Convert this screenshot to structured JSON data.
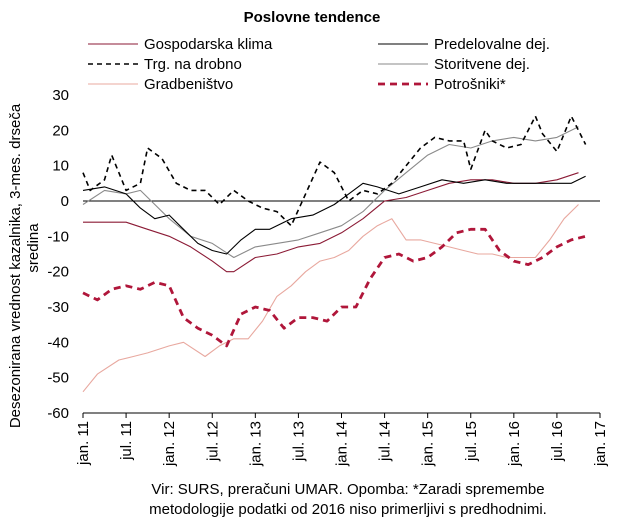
{
  "chart_data": {
    "type": "line",
    "title": "Poslovne tendence",
    "ylabel": "Desezonirana vrednost kazalnika, 3-mes. drseča sredina",
    "ylim": [
      -60,
      30
    ],
    "yticks": [
      30,
      20,
      10,
      0,
      -10,
      -20,
      -30,
      -40,
      -50,
      -60
    ],
    "x_start": "2011-01",
    "x_end": "2017-01",
    "xtick_labels": [
      "jan. 11",
      "jul. 11",
      "jan. 12",
      "jul. 12",
      "jan. 13",
      "jul. 13",
      "jan. 14",
      "jul. 14",
      "jan. 15",
      "jul. 15",
      "jan. 16",
      "jul. 16",
      "jan. 17"
    ],
    "legend_placement": "top",
    "series": [
      {
        "name": "Gospodarska klima",
        "color": "#8b1a35",
        "dash": "solid",
        "x": [
          "2011-01",
          "2011-04",
          "2011-07",
          "2011-10",
          "2012-01",
          "2012-04",
          "2012-07",
          "2012-09",
          "2012-10",
          "2013-01",
          "2013-04",
          "2013-07",
          "2013-10",
          "2014-01",
          "2014-04",
          "2014-07",
          "2014-10",
          "2015-01",
          "2015-04",
          "2015-07",
          "2015-10",
          "2016-01",
          "2016-04",
          "2016-07",
          "2016-10"
        ],
        "values": [
          -6,
          -6,
          -6,
          -8,
          -10,
          -13,
          -17,
          -20,
          -20,
          -16,
          -15,
          -13,
          -12,
          -9,
          -5,
          0,
          1,
          3,
          5,
          6,
          6,
          5,
          5,
          6,
          8
        ]
      },
      {
        "name": "Predelovalne dej.",
        "color": "#000000",
        "dash": "solid",
        "x": [
          "2011-01",
          "2011-04",
          "2011-07",
          "2011-09",
          "2011-11",
          "2012-01",
          "2012-03",
          "2012-05",
          "2012-07",
          "2012-09",
          "2012-11",
          "2013-01",
          "2013-03",
          "2013-06",
          "2013-09",
          "2013-12",
          "2014-02",
          "2014-04",
          "2014-06",
          "2014-09",
          "2014-12",
          "2015-03",
          "2015-06",
          "2015-09",
          "2015-12",
          "2016-03",
          "2016-06",
          "2016-09",
          "2016-11"
        ],
        "values": [
          3,
          4,
          2,
          -2,
          -5,
          -4,
          -8,
          -12,
          -14,
          -15,
          -11,
          -8,
          -8,
          -5,
          -4,
          -1,
          2,
          5,
          4,
          2,
          4,
          6,
          5,
          6,
          5,
          5,
          5,
          5,
          7
        ]
      },
      {
        "name": "Trg. na drobno",
        "color": "#000000",
        "dash": "dashed",
        "x": [
          "2011-01",
          "2011-02",
          "2011-04",
          "2011-05",
          "2011-07",
          "2011-09",
          "2011-10",
          "2011-12",
          "2012-02",
          "2012-04",
          "2012-06",
          "2012-08",
          "2012-10",
          "2012-12",
          "2013-02",
          "2013-04",
          "2013-06",
          "2013-08",
          "2013-10",
          "2013-12",
          "2014-02",
          "2014-04",
          "2014-06",
          "2014-08",
          "2014-10",
          "2014-12",
          "2015-02",
          "2015-04",
          "2015-06",
          "2015-07",
          "2015-09",
          "2015-10",
          "2015-12",
          "2016-02",
          "2016-04",
          "2016-05",
          "2016-07",
          "2016-09",
          "2016-11"
        ],
        "values": [
          8,
          3,
          6,
          13,
          3,
          5,
          15,
          12,
          5,
          3,
          3,
          -1,
          3,
          0,
          -2,
          -3,
          -7,
          2,
          11,
          8,
          0,
          3,
          2,
          5,
          10,
          15,
          18,
          17,
          17,
          9,
          20,
          17,
          15,
          16,
          24,
          19,
          14,
          24,
          16
        ]
      },
      {
        "name": "Storitvene dej.",
        "color": "#8a8a8a",
        "dash": "solid",
        "x": [
          "2011-01",
          "2011-04",
          "2011-07",
          "2011-09",
          "2011-11",
          "2012-01",
          "2012-04",
          "2012-07",
          "2012-10",
          "2013-01",
          "2013-04",
          "2013-07",
          "2013-10",
          "2014-01",
          "2014-04",
          "2014-07",
          "2014-10",
          "2015-01",
          "2015-04",
          "2015-07",
          "2015-10",
          "2016-01",
          "2016-04",
          "2016-07",
          "2016-10"
        ],
        "values": [
          -1,
          3,
          2,
          3,
          -1,
          -5,
          -10,
          -12,
          -16,
          -13,
          -12,
          -11,
          -9,
          -7,
          -3,
          3,
          8,
          13,
          16,
          15,
          17,
          18,
          17,
          18,
          21
        ]
      },
      {
        "name": "Gradbeništvo",
        "color": "#e8a89f",
        "dash": "solid",
        "x": [
          "2011-01",
          "2011-03",
          "2011-06",
          "2011-08",
          "2011-10",
          "2012-01",
          "2012-03",
          "2012-06",
          "2012-08",
          "2012-10",
          "2012-12",
          "2013-02",
          "2013-04",
          "2013-06",
          "2013-08",
          "2013-10",
          "2013-12",
          "2014-02",
          "2014-04",
          "2014-06",
          "2014-08",
          "2014-10",
          "2014-12",
          "2015-02",
          "2015-04",
          "2015-06",
          "2015-08",
          "2015-10",
          "2015-12",
          "2016-02",
          "2016-04",
          "2016-06",
          "2016-08",
          "2016-10"
        ],
        "values": [
          -54,
          -49,
          -45,
          -44,
          -43,
          -41,
          -40,
          -44,
          -41,
          -39,
          -39,
          -34,
          -27,
          -24,
          -20,
          -17,
          -16,
          -14,
          -10,
          -7,
          -5,
          -11,
          -11,
          -12,
          -13,
          -14,
          -15,
          -15,
          -16,
          -16,
          -16,
          -11,
          -5,
          -1
        ]
      },
      {
        "name": "Potrošniki*",
        "color": "#b0163a",
        "dash": "dashed-bold",
        "x": [
          "2011-01",
          "2011-03",
          "2011-05",
          "2011-07",
          "2011-09",
          "2011-11",
          "2012-01",
          "2012-03",
          "2012-05",
          "2012-07",
          "2012-09",
          "2012-11",
          "2013-01",
          "2013-03",
          "2013-05",
          "2013-07",
          "2013-09",
          "2013-11",
          "2014-01",
          "2014-03",
          "2014-05",
          "2014-07",
          "2014-09",
          "2014-11",
          "2015-01",
          "2015-03",
          "2015-05",
          "2015-07",
          "2015-09",
          "2015-11",
          "2016-01",
          "2016-03",
          "2016-05",
          "2016-07",
          "2016-09",
          "2016-11"
        ],
        "values": [
          -26,
          -28,
          -25,
          -24,
          -25,
          -23,
          -24,
          -33,
          -36,
          -38,
          -41,
          -32,
          -30,
          -31,
          -36,
          -33,
          -33,
          -34,
          -30,
          -30,
          -22,
          -16,
          -15,
          -17,
          -16,
          -13,
          -9,
          -8,
          -8,
          -14,
          -17,
          -18,
          -16,
          -13,
          -11,
          -10
        ]
      }
    ]
  },
  "source_text_line1": "Vir: SURS, preračuni UMAR. Opomba: *Zaradi spremembe",
  "source_text_line2": "metodologije podatki od 2016 niso primerljivi s predhodnimi."
}
